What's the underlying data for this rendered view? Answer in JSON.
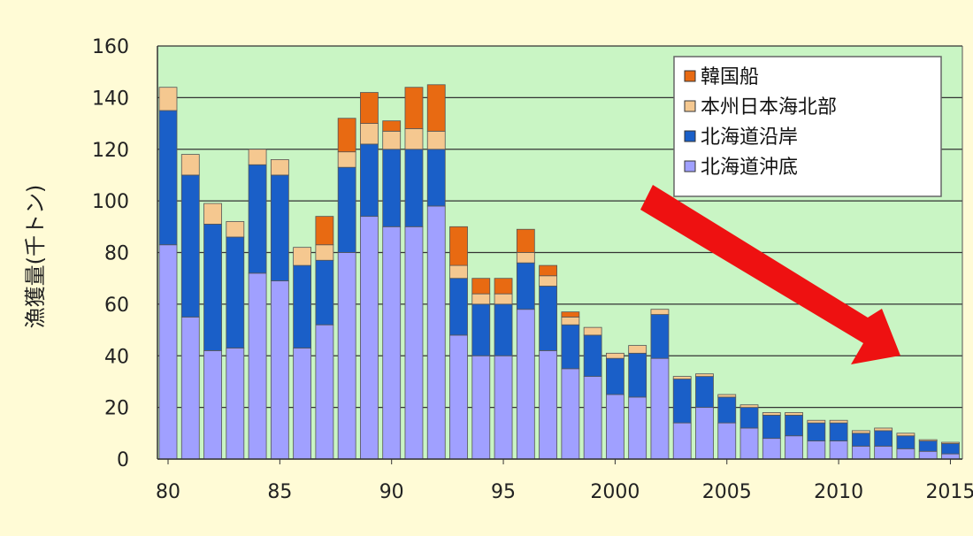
{
  "chart_data": {
    "type": "bar",
    "stacked": true,
    "ylabel": "漁獲量(千トン)",
    "ylim": [
      0,
      160
    ],
    "y_ticks": [
      "0",
      "20",
      "40",
      "60",
      "80",
      "100",
      "120",
      "140",
      "160"
    ],
    "x_tick_labels": [
      {
        "year": 1980,
        "label": "80"
      },
      {
        "year": 1985,
        "label": "85"
      },
      {
        "year": 1990,
        "label": "90"
      },
      {
        "year": 1995,
        "label": "95"
      },
      {
        "year": 2000,
        "label": "2000"
      },
      {
        "year": 2005,
        "label": "2005"
      },
      {
        "year": 2010,
        "label": "2010"
      },
      {
        "year": 2015,
        "label": "2015"
      }
    ],
    "grid": true,
    "legend_position": "top-right",
    "x": [
      1980,
      1981,
      1982,
      1983,
      1984,
      1985,
      1986,
      1987,
      1988,
      1989,
      1990,
      1991,
      1992,
      1993,
      1994,
      1995,
      1996,
      1997,
      1998,
      1999,
      2000,
      2001,
      2002,
      2003,
      2004,
      2005,
      2006,
      2007,
      2008,
      2009,
      2010,
      2011,
      2012,
      2013,
      2014,
      2015
    ],
    "series": [
      {
        "name": "北海道沖底",
        "color": "#a0a0ff",
        "values": [
          83,
          55,
          42,
          43,
          72,
          69,
          43,
          52,
          80,
          94,
          90,
          90,
          98,
          48,
          40,
          40,
          58,
          42,
          35,
          32,
          25,
          24,
          39,
          14,
          20,
          14,
          12,
          8,
          9,
          7,
          7,
          5,
          5,
          4,
          3,
          2
        ]
      },
      {
        "name": "北海道沿岸",
        "color": "#1a5fc8",
        "values": [
          52,
          55,
          49,
          43,
          42,
          41,
          32,
          25,
          33,
          28,
          30,
          30,
          22,
          22,
          20,
          20,
          18,
          25,
          17,
          16,
          14,
          17,
          17,
          17,
          12,
          10,
          8,
          9,
          8,
          7,
          7,
          5,
          6,
          5,
          4,
          4
        ]
      },
      {
        "name": "本州日本海北部",
        "color": "#f5c890",
        "values": [
          9,
          8,
          8,
          6,
          6,
          6,
          7,
          6,
          6,
          8,
          7,
          8,
          7,
          5,
          4,
          4,
          4,
          4,
          3,
          3,
          2,
          3,
          2,
          1,
          1,
          1,
          1,
          1,
          1,
          1,
          1,
          1,
          1,
          1,
          0.5,
          0.5
        ]
      },
      {
        "name": "韓国船",
        "color": "#e86a12",
        "values": [
          0,
          0,
          0,
          0,
          0,
          0,
          0,
          11,
          13,
          12,
          4,
          16,
          18,
          15,
          6,
          6,
          9,
          4,
          2,
          0,
          0,
          0,
          0,
          0,
          0,
          0,
          0,
          0,
          0,
          0,
          0,
          0,
          0,
          0,
          0,
          0
        ]
      }
    ]
  }
}
